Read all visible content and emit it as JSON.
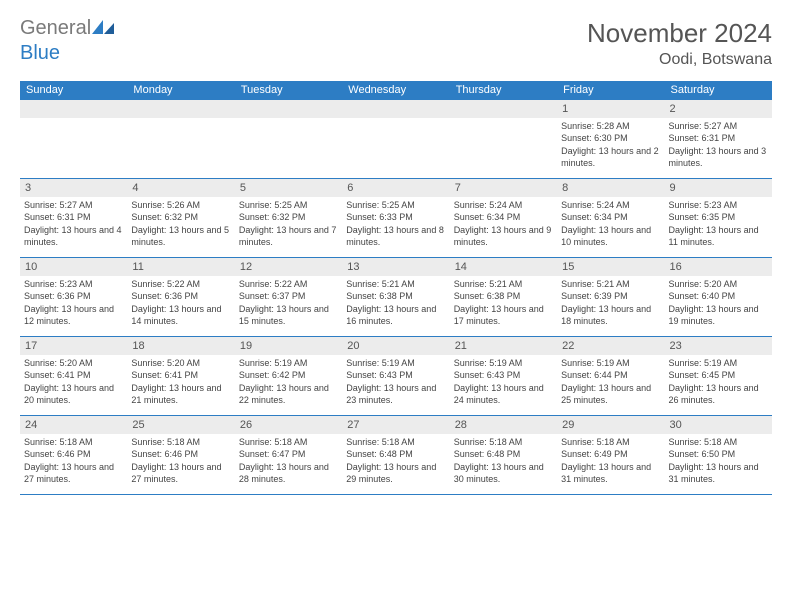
{
  "logo": {
    "general": "General",
    "blue": "Blue"
  },
  "title": "November 2024",
  "location": "Oodi, Botswana",
  "colors": {
    "header_bg": "#2d7dc4",
    "header_text": "#ffffff",
    "daynum_bg": "#ececec",
    "border": "#2d7dc4",
    "text": "#444444"
  },
  "day_names": [
    "Sunday",
    "Monday",
    "Tuesday",
    "Wednesday",
    "Thursday",
    "Friday",
    "Saturday"
  ],
  "weeks": [
    [
      {
        "n": "",
        "sr": "",
        "ss": "",
        "dl": ""
      },
      {
        "n": "",
        "sr": "",
        "ss": "",
        "dl": ""
      },
      {
        "n": "",
        "sr": "",
        "ss": "",
        "dl": ""
      },
      {
        "n": "",
        "sr": "",
        "ss": "",
        "dl": ""
      },
      {
        "n": "",
        "sr": "",
        "ss": "",
        "dl": ""
      },
      {
        "n": "1",
        "sr": "Sunrise: 5:28 AM",
        "ss": "Sunset: 6:30 PM",
        "dl": "Daylight: 13 hours and 2 minutes."
      },
      {
        "n": "2",
        "sr": "Sunrise: 5:27 AM",
        "ss": "Sunset: 6:31 PM",
        "dl": "Daylight: 13 hours and 3 minutes."
      }
    ],
    [
      {
        "n": "3",
        "sr": "Sunrise: 5:27 AM",
        "ss": "Sunset: 6:31 PM",
        "dl": "Daylight: 13 hours and 4 minutes."
      },
      {
        "n": "4",
        "sr": "Sunrise: 5:26 AM",
        "ss": "Sunset: 6:32 PM",
        "dl": "Daylight: 13 hours and 5 minutes."
      },
      {
        "n": "5",
        "sr": "Sunrise: 5:25 AM",
        "ss": "Sunset: 6:32 PM",
        "dl": "Daylight: 13 hours and 7 minutes."
      },
      {
        "n": "6",
        "sr": "Sunrise: 5:25 AM",
        "ss": "Sunset: 6:33 PM",
        "dl": "Daylight: 13 hours and 8 minutes."
      },
      {
        "n": "7",
        "sr": "Sunrise: 5:24 AM",
        "ss": "Sunset: 6:34 PM",
        "dl": "Daylight: 13 hours and 9 minutes."
      },
      {
        "n": "8",
        "sr": "Sunrise: 5:24 AM",
        "ss": "Sunset: 6:34 PM",
        "dl": "Daylight: 13 hours and 10 minutes."
      },
      {
        "n": "9",
        "sr": "Sunrise: 5:23 AM",
        "ss": "Sunset: 6:35 PM",
        "dl": "Daylight: 13 hours and 11 minutes."
      }
    ],
    [
      {
        "n": "10",
        "sr": "Sunrise: 5:23 AM",
        "ss": "Sunset: 6:36 PM",
        "dl": "Daylight: 13 hours and 12 minutes."
      },
      {
        "n": "11",
        "sr": "Sunrise: 5:22 AM",
        "ss": "Sunset: 6:36 PM",
        "dl": "Daylight: 13 hours and 14 minutes."
      },
      {
        "n": "12",
        "sr": "Sunrise: 5:22 AM",
        "ss": "Sunset: 6:37 PM",
        "dl": "Daylight: 13 hours and 15 minutes."
      },
      {
        "n": "13",
        "sr": "Sunrise: 5:21 AM",
        "ss": "Sunset: 6:38 PM",
        "dl": "Daylight: 13 hours and 16 minutes."
      },
      {
        "n": "14",
        "sr": "Sunrise: 5:21 AM",
        "ss": "Sunset: 6:38 PM",
        "dl": "Daylight: 13 hours and 17 minutes."
      },
      {
        "n": "15",
        "sr": "Sunrise: 5:21 AM",
        "ss": "Sunset: 6:39 PM",
        "dl": "Daylight: 13 hours and 18 minutes."
      },
      {
        "n": "16",
        "sr": "Sunrise: 5:20 AM",
        "ss": "Sunset: 6:40 PM",
        "dl": "Daylight: 13 hours and 19 minutes."
      }
    ],
    [
      {
        "n": "17",
        "sr": "Sunrise: 5:20 AM",
        "ss": "Sunset: 6:41 PM",
        "dl": "Daylight: 13 hours and 20 minutes."
      },
      {
        "n": "18",
        "sr": "Sunrise: 5:20 AM",
        "ss": "Sunset: 6:41 PM",
        "dl": "Daylight: 13 hours and 21 minutes."
      },
      {
        "n": "19",
        "sr": "Sunrise: 5:19 AM",
        "ss": "Sunset: 6:42 PM",
        "dl": "Daylight: 13 hours and 22 minutes."
      },
      {
        "n": "20",
        "sr": "Sunrise: 5:19 AM",
        "ss": "Sunset: 6:43 PM",
        "dl": "Daylight: 13 hours and 23 minutes."
      },
      {
        "n": "21",
        "sr": "Sunrise: 5:19 AM",
        "ss": "Sunset: 6:43 PM",
        "dl": "Daylight: 13 hours and 24 minutes."
      },
      {
        "n": "22",
        "sr": "Sunrise: 5:19 AM",
        "ss": "Sunset: 6:44 PM",
        "dl": "Daylight: 13 hours and 25 minutes."
      },
      {
        "n": "23",
        "sr": "Sunrise: 5:19 AM",
        "ss": "Sunset: 6:45 PM",
        "dl": "Daylight: 13 hours and 26 minutes."
      }
    ],
    [
      {
        "n": "24",
        "sr": "Sunrise: 5:18 AM",
        "ss": "Sunset: 6:46 PM",
        "dl": "Daylight: 13 hours and 27 minutes."
      },
      {
        "n": "25",
        "sr": "Sunrise: 5:18 AM",
        "ss": "Sunset: 6:46 PM",
        "dl": "Daylight: 13 hours and 27 minutes."
      },
      {
        "n": "26",
        "sr": "Sunrise: 5:18 AM",
        "ss": "Sunset: 6:47 PM",
        "dl": "Daylight: 13 hours and 28 minutes."
      },
      {
        "n": "27",
        "sr": "Sunrise: 5:18 AM",
        "ss": "Sunset: 6:48 PM",
        "dl": "Daylight: 13 hours and 29 minutes."
      },
      {
        "n": "28",
        "sr": "Sunrise: 5:18 AM",
        "ss": "Sunset: 6:48 PM",
        "dl": "Daylight: 13 hours and 30 minutes."
      },
      {
        "n": "29",
        "sr": "Sunrise: 5:18 AM",
        "ss": "Sunset: 6:49 PM",
        "dl": "Daylight: 13 hours and 31 minutes."
      },
      {
        "n": "30",
        "sr": "Sunrise: 5:18 AM",
        "ss": "Sunset: 6:50 PM",
        "dl": "Daylight: 13 hours and 31 minutes."
      }
    ]
  ]
}
